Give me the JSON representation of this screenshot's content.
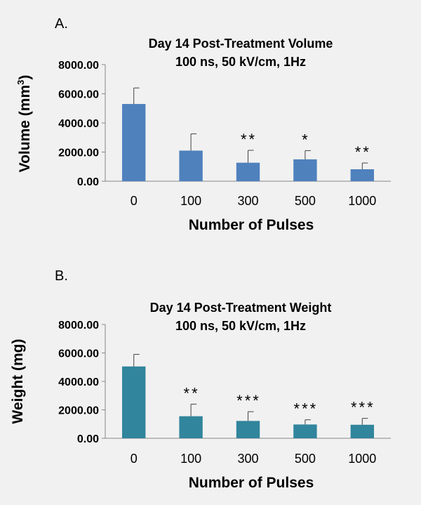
{
  "chart_data": [
    {
      "type": "bar",
      "panel_label": "A.",
      "title": [
        "Day 14 Post-Treatment Volume",
        "100 ns, 50 kV/cm, 1Hz"
      ],
      "xlabel": "Number of Pulses",
      "ylabel_main": "Volume (mm",
      "ylabel_sup": "3",
      "ylabel_end": ")",
      "categories": [
        "0",
        "100",
        "300",
        "500",
        "1000"
      ],
      "values": [
        5300,
        2100,
        1270,
        1500,
        820
      ],
      "errors": [
        1100,
        1150,
        850,
        600,
        430
      ],
      "significance": [
        "",
        "",
        "**",
        "*",
        "**"
      ],
      "ylim": [
        0,
        8000
      ],
      "yticks": [
        "0.00",
        "2000.00",
        "4000.00",
        "6000.00",
        "8000.00"
      ],
      "color": "#4f81bd",
      "grid": false
    },
    {
      "type": "bar",
      "panel_label": "B.",
      "title": [
        "Day 14 Post-Treatment  Weight",
        "100 ns, 50 kV/cm, 1Hz"
      ],
      "xlabel": "Number of Pulses",
      "ylabel_main": "Weight (mg)",
      "ylabel_sup": "",
      "ylabel_end": "",
      "categories": [
        "0",
        "100",
        "300",
        "500",
        "1000"
      ],
      "values": [
        5050,
        1550,
        1220,
        970,
        950
      ],
      "errors": [
        850,
        850,
        650,
        330,
        450
      ],
      "significance": [
        "",
        "**",
        "***",
        "***",
        "***"
      ],
      "ylim": [
        0,
        8000
      ],
      "yticks": [
        "0.00",
        "2000.00",
        "4000.00",
        "6000.00",
        "8000.00"
      ],
      "color": "#31859c",
      "grid": false
    }
  ]
}
